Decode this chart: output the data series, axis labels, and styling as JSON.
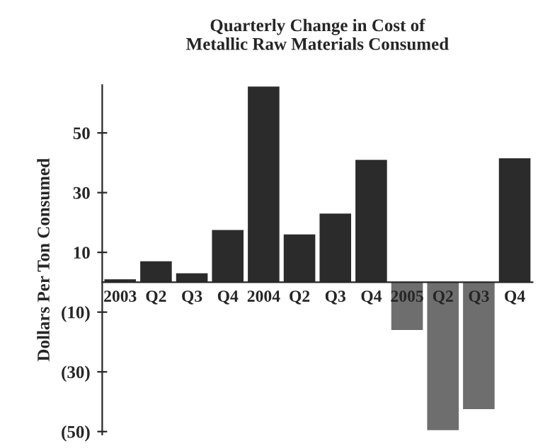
{
  "chart_data": {
    "type": "bar",
    "title": "Quarterly Change in Cost of\nMetallic Raw Materials Consumed",
    "ylabel": "Dollars Per Ton Consumed",
    "categories": [
      "2003",
      "Q2",
      "Q3",
      "Q4",
      "2004",
      "Q2",
      "Q3",
      "Q4",
      "2005",
      "Q2",
      "Q3",
      "Q4"
    ],
    "values": [
      1,
      7,
      3,
      17.5,
      65.5,
      16,
      23,
      41,
      -16,
      -49.5,
      -42.5,
      41.5
    ],
    "colors": [
      "#2b2b2b",
      "#2b2b2b",
      "#2b2b2b",
      "#2b2b2b",
      "#2b2b2b",
      "#2b2b2b",
      "#2b2b2b",
      "#2b2b2b",
      "#6e6e6e",
      "#6e6e6e",
      "#6e6e6e",
      "#2b2b2b"
    ],
    "ylim": [
      -51,
      66
    ],
    "yticks": [
      50,
      30,
      10,
      {
        "value": -10,
        "label": "(10)"
      },
      {
        "value": -30,
        "label": "(30)"
      },
      {
        "value": -50,
        "label": "(50)"
      }
    ],
    "grid": false,
    "legend": false
  }
}
